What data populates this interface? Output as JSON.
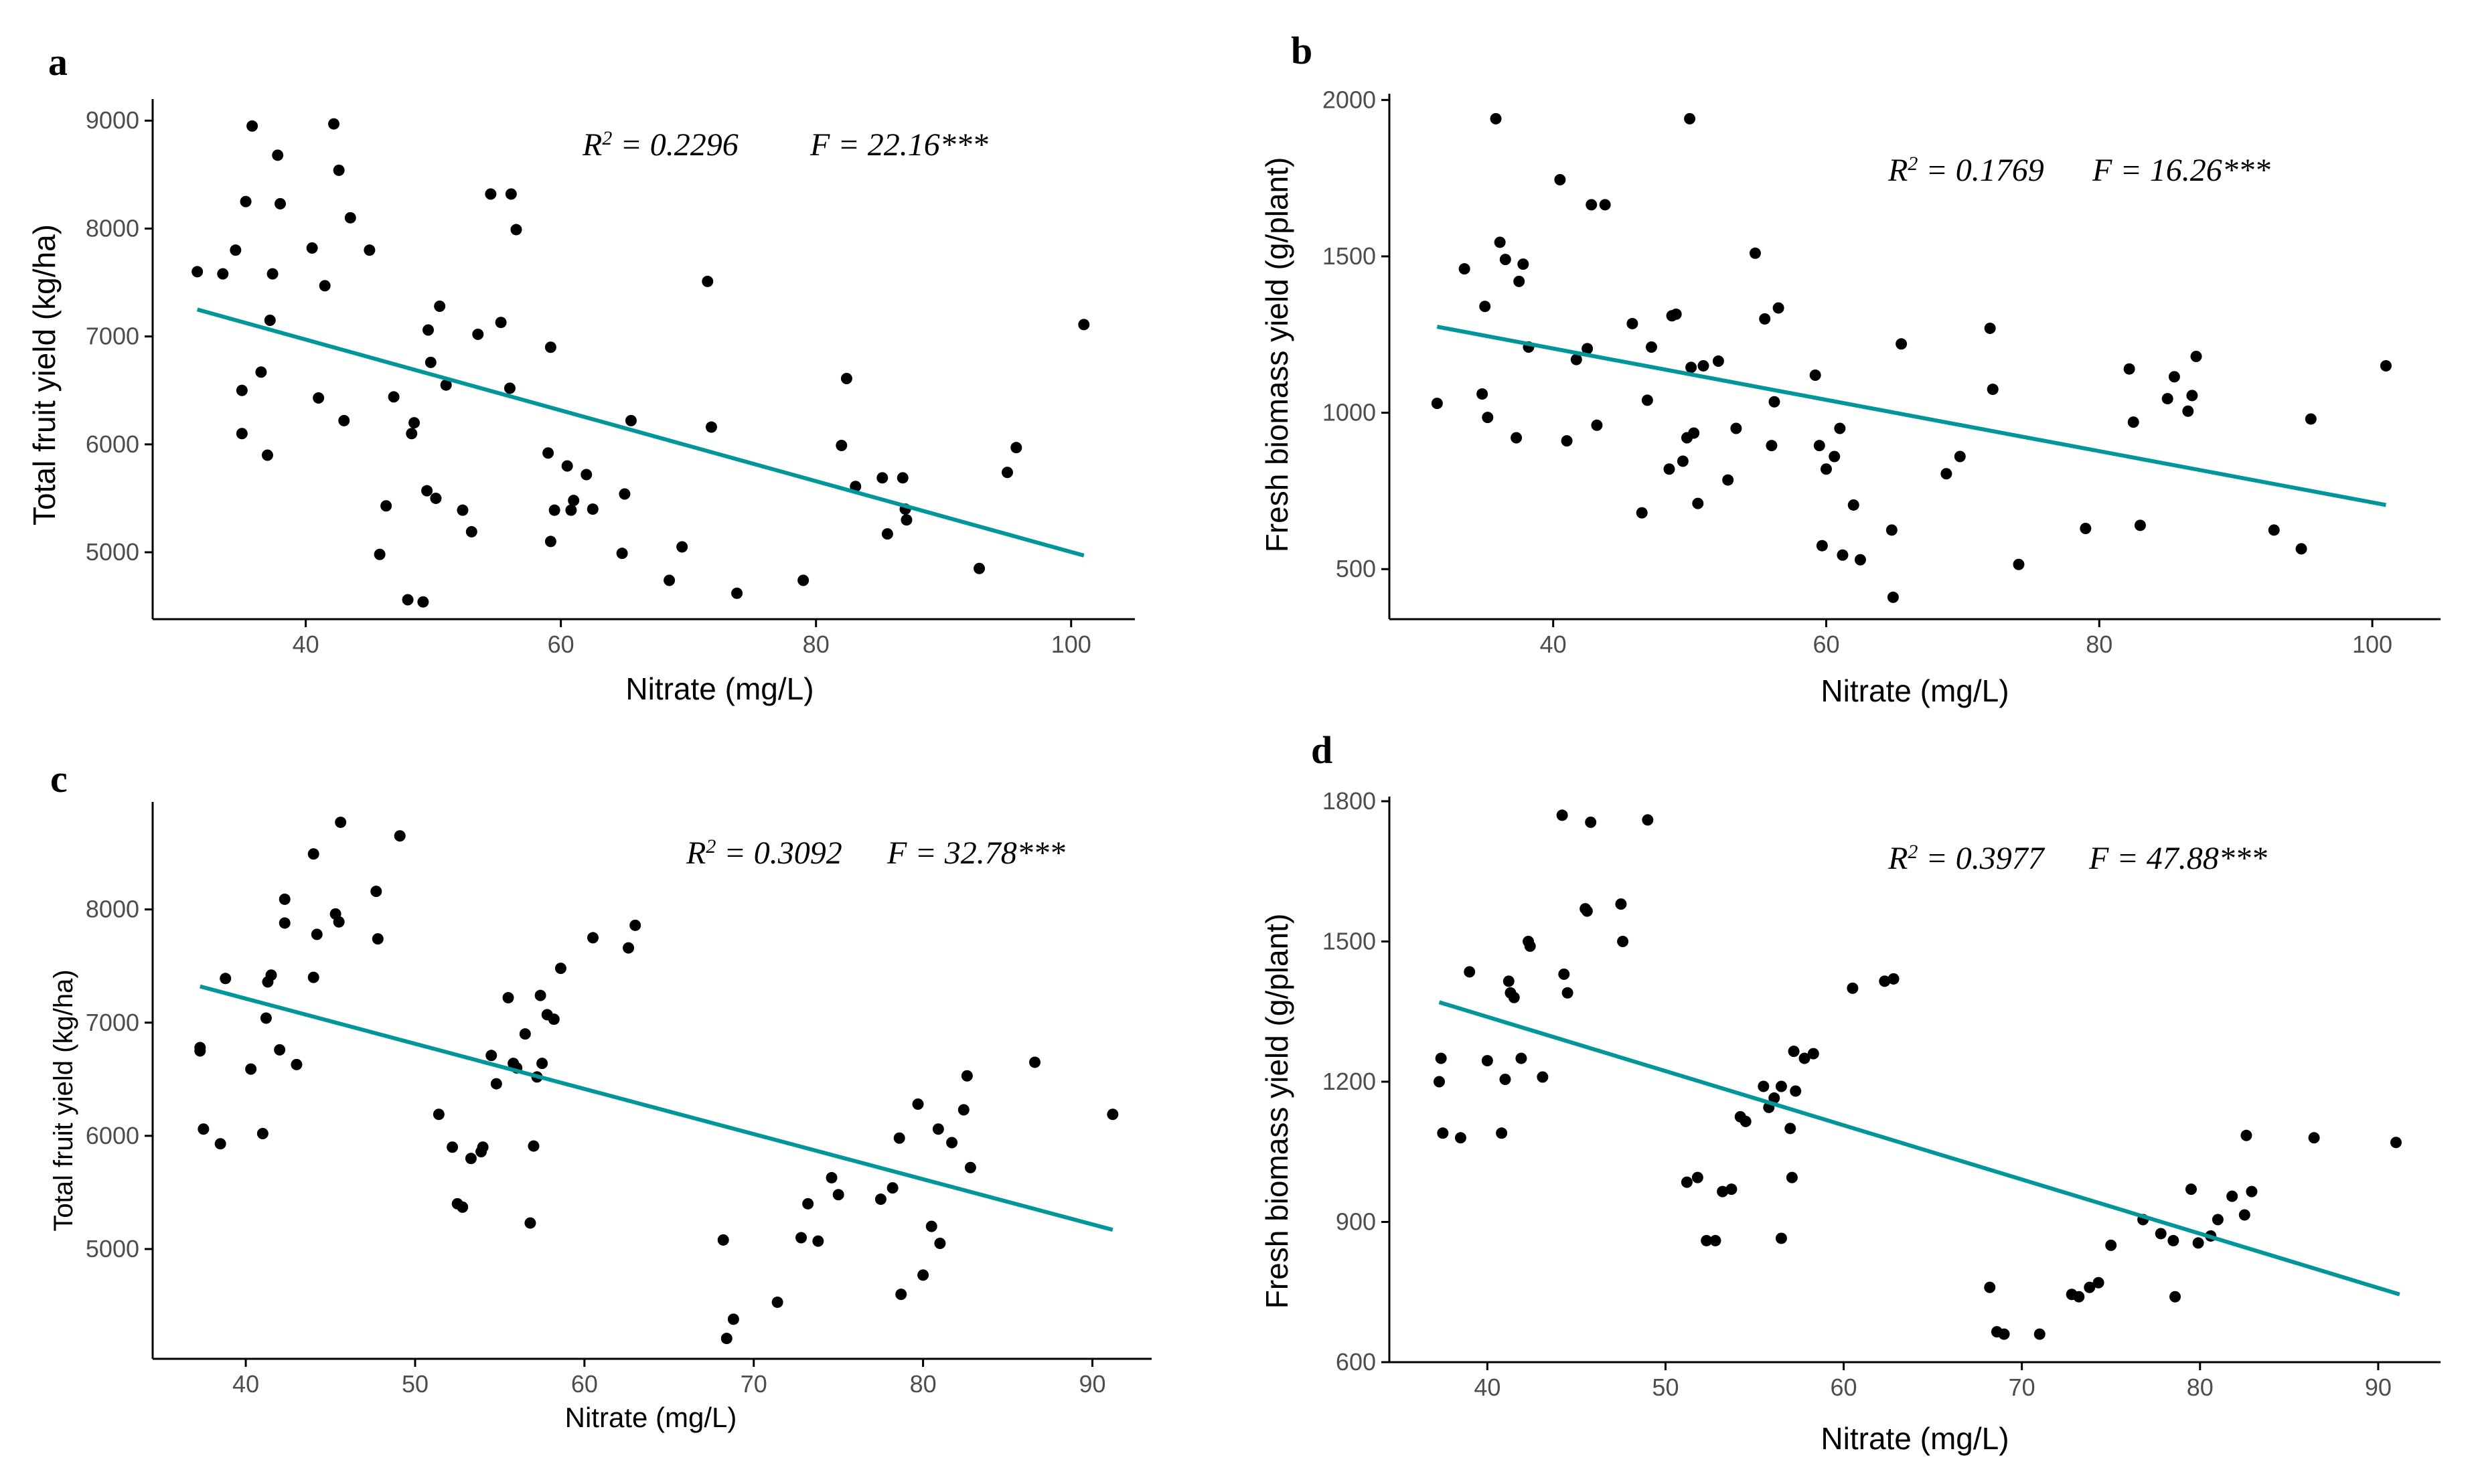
{
  "figure": {
    "colors": {
      "regression": "#00969a",
      "points": "#000000"
    }
  },
  "chart_data": [
    {
      "panel": "a",
      "type": "scatter",
      "xlabel": "Nitrate (mg/L)",
      "ylabel": "Total fruit yield (kg/ha)",
      "xlim": [
        28,
        105
      ],
      "ylim": [
        4380,
        9200
      ],
      "xticks": [
        40,
        60,
        80,
        100
      ],
      "yticks": [
        5000,
        6000,
        7000,
        8000,
        9000
      ],
      "stat": {
        "r2_label": "R",
        "r2_text": " = 0.2296",
        "f_text": "F = 22.16***"
      },
      "regression": {
        "x": [
          31.5,
          101
        ],
        "y": [
          7250,
          4970
        ]
      },
      "points": [
        [
          31.5,
          7600
        ],
        [
          33.5,
          7580
        ],
        [
          34.5,
          7800
        ],
        [
          35,
          6500
        ],
        [
          35,
          6100
        ],
        [
          35.3,
          8250
        ],
        [
          35.8,
          8950
        ],
        [
          36.5,
          6670
        ],
        [
          37,
          5900
        ],
        [
          37.2,
          7150
        ],
        [
          37.4,
          7580
        ],
        [
          37.8,
          8680
        ],
        [
          38,
          8230
        ],
        [
          40.5,
          7820
        ],
        [
          41,
          6430
        ],
        [
          41.5,
          7470
        ],
        [
          42.2,
          8970
        ],
        [
          42.6,
          8540
        ],
        [
          43,
          6220
        ],
        [
          43.5,
          8100
        ],
        [
          45,
          7800
        ],
        [
          45.8,
          4980
        ],
        [
          46.3,
          5430
        ],
        [
          46.9,
          6440
        ],
        [
          48,
          4560
        ],
        [
          48.3,
          6100
        ],
        [
          48.5,
          6200
        ],
        [
          49.2,
          4540
        ],
        [
          49.5,
          5570
        ],
        [
          49.6,
          7060
        ],
        [
          49.8,
          6760
        ],
        [
          50.2,
          5500
        ],
        [
          50.5,
          7280
        ],
        [
          51,
          6550
        ],
        [
          52.3,
          5390
        ],
        [
          53,
          5190
        ],
        [
          53.5,
          7020
        ],
        [
          54.5,
          8320
        ],
        [
          55.3,
          7130
        ],
        [
          56,
          6520
        ],
        [
          56.1,
          8320
        ],
        [
          56.5,
          7990
        ],
        [
          59,
          5920
        ],
        [
          59.2,
          5100
        ],
        [
          59.2,
          6900
        ],
        [
          59.5,
          5390
        ],
        [
          60.5,
          5800
        ],
        [
          60.8,
          5390
        ],
        [
          61,
          5480
        ],
        [
          62,
          5720
        ],
        [
          62.5,
          5400
        ],
        [
          64.8,
          4990
        ],
        [
          65,
          5540
        ],
        [
          65.5,
          6220
        ],
        [
          68.5,
          4740
        ],
        [
          69.5,
          5050
        ],
        [
          71.5,
          7510
        ],
        [
          71.8,
          6160
        ],
        [
          73.8,
          4620
        ],
        [
          79,
          4740
        ],
        [
          82,
          5990
        ],
        [
          82.4,
          6610
        ],
        [
          83.1,
          5610
        ],
        [
          85.2,
          5690
        ],
        [
          85.6,
          5170
        ],
        [
          86.8,
          5690
        ],
        [
          87,
          5400
        ],
        [
          87.1,
          5300
        ],
        [
          92.8,
          4850
        ],
        [
          95,
          5740
        ],
        [
          95.7,
          5970
        ],
        [
          101,
          7110
        ]
      ]
    },
    {
      "panel": "b",
      "type": "scatter",
      "xlabel": "Nitrate (mg/L)",
      "ylabel": "Fresh biomass yield (g/plant)",
      "xlim": [
        28,
        105
      ],
      "ylim": [
        340,
        2020
      ],
      "xticks": [
        40,
        60,
        80,
        100
      ],
      "yticks": [
        500,
        1000,
        1500,
        2000
      ],
      "stat": {
        "r2_label": "R",
        "r2_text": " = 0.1769",
        "f_text": "F = 16.26***"
      },
      "regression": {
        "x": [
          31.5,
          101
        ],
        "y": [
          1275,
          705
        ]
      },
      "points": [
        [
          31.5,
          1030
        ],
        [
          33.5,
          1460
        ],
        [
          34.8,
          1060
        ],
        [
          35,
          1340
        ],
        [
          35.2,
          985
        ],
        [
          35.8,
          1940
        ],
        [
          36.1,
          1545
        ],
        [
          36.5,
          1490
        ],
        [
          37.3,
          920
        ],
        [
          37.5,
          1420
        ],
        [
          37.8,
          1475
        ],
        [
          38.2,
          1210
        ],
        [
          40.5,
          1745
        ],
        [
          41,
          910
        ],
        [
          41.7,
          1170
        ],
        [
          42.5,
          1205
        ],
        [
          42.8,
          1665
        ],
        [
          43.2,
          960
        ],
        [
          43.8,
          1665
        ],
        [
          45.8,
          1285
        ],
        [
          46.5,
          680
        ],
        [
          46.9,
          1040
        ],
        [
          47.2,
          1210
        ],
        [
          48.5,
          820
        ],
        [
          48.7,
          1310
        ],
        [
          49,
          1315
        ],
        [
          49.5,
          845
        ],
        [
          49.8,
          920
        ],
        [
          50,
          1940
        ],
        [
          50.1,
          1145
        ],
        [
          50.3,
          935
        ],
        [
          50.6,
          710
        ],
        [
          51,
          1150
        ],
        [
          52.1,
          1165
        ],
        [
          52.8,
          785
        ],
        [
          53.4,
          950
        ],
        [
          54.8,
          1510
        ],
        [
          55.5,
          1300
        ],
        [
          56,
          895
        ],
        [
          56.2,
          1035
        ],
        [
          56.5,
          1335
        ],
        [
          59.2,
          1120
        ],
        [
          59.5,
          895
        ],
        [
          59.7,
          575
        ],
        [
          60,
          820
        ],
        [
          60.6,
          860
        ],
        [
          61,
          950
        ],
        [
          61.2,
          545
        ],
        [
          62,
          705
        ],
        [
          62.5,
          530
        ],
        [
          64.8,
          625
        ],
        [
          64.9,
          410
        ],
        [
          65.5,
          1220
        ],
        [
          68.8,
          805
        ],
        [
          69.8,
          860
        ],
        [
          72,
          1270
        ],
        [
          72.2,
          1075
        ],
        [
          74.1,
          515
        ],
        [
          79,
          630
        ],
        [
          82.2,
          1140
        ],
        [
          82.5,
          970
        ],
        [
          83,
          640
        ],
        [
          85,
          1045
        ],
        [
          85.5,
          1115
        ],
        [
          86.5,
          1005
        ],
        [
          86.8,
          1055
        ],
        [
          87.1,
          1180
        ],
        [
          92.8,
          625
        ],
        [
          94.8,
          565
        ],
        [
          95.5,
          980
        ],
        [
          101,
          1150
        ]
      ]
    },
    {
      "panel": "c",
      "type": "scatter",
      "xlabel": "Nitrate (mg/L)",
      "ylabel": "Total fruit yield (kg/ha)",
      "xlim": [
        34.5,
        93.5
      ],
      "ylim": [
        4030,
        8950
      ],
      "xticks": [
        40,
        50,
        60,
        70,
        80,
        90
      ],
      "yticks": [
        5000,
        6000,
        7000,
        8000
      ],
      "stat": {
        "r2_label": "R",
        "r2_text": " = 0.3092",
        "f_text": "F = 32.78***"
      },
      "regression": {
        "x": [
          37.3,
          91.2
        ],
        "y": [
          7320,
          5170
        ]
      },
      "points": [
        [
          37.3,
          6750
        ],
        [
          37.3,
          6780
        ],
        [
          37.5,
          6060
        ],
        [
          38.5,
          5930
        ],
        [
          38.8,
          7390
        ],
        [
          40.3,
          6590
        ],
        [
          41,
          6020
        ],
        [
          41.2,
          7040
        ],
        [
          41.3,
          7360
        ],
        [
          41.5,
          7420
        ],
        [
          42,
          6760
        ],
        [
          42.3,
          8090
        ],
        [
          42.3,
          7880
        ],
        [
          43,
          6630
        ],
        [
          44,
          8490
        ],
        [
          44,
          7400
        ],
        [
          44.2,
          7780
        ],
        [
          45.3,
          7960
        ],
        [
          45.5,
          7890
        ],
        [
          45.6,
          8770
        ],
        [
          47.7,
          8160
        ],
        [
          47.8,
          7740
        ],
        [
          49.1,
          8650
        ],
        [
          51.4,
          6190
        ],
        [
          52.2,
          5900
        ],
        [
          52.5,
          5400
        ],
        [
          52.8,
          5370
        ],
        [
          53.3,
          5800
        ],
        [
          53.9,
          5860
        ],
        [
          54,
          5900
        ],
        [
          54.5,
          6710
        ],
        [
          54.8,
          6460
        ],
        [
          55.5,
          7220
        ],
        [
          55.8,
          6640
        ],
        [
          56,
          6600
        ],
        [
          56.5,
          6900
        ],
        [
          56.8,
          5230
        ],
        [
          57,
          5910
        ],
        [
          57.2,
          6520
        ],
        [
          57.4,
          7240
        ],
        [
          57.5,
          6640
        ],
        [
          57.8,
          7070
        ],
        [
          58.2,
          7030
        ],
        [
          58.6,
          7480
        ],
        [
          60.5,
          7750
        ],
        [
          62.6,
          7660
        ],
        [
          63,
          7860
        ],
        [
          68.2,
          5080
        ],
        [
          68.4,
          4210
        ],
        [
          68.8,
          4380
        ],
        [
          71.4,
          4530
        ],
        [
          72.8,
          5100
        ],
        [
          73.2,
          5400
        ],
        [
          73.8,
          5070
        ],
        [
          74.6,
          5630
        ],
        [
          75,
          5480
        ],
        [
          77.5,
          5440
        ],
        [
          78.2,
          5540
        ],
        [
          78.6,
          5980
        ],
        [
          78.7,
          4600
        ],
        [
          79.7,
          6280
        ],
        [
          80,
          4770
        ],
        [
          80.5,
          5200
        ],
        [
          80.9,
          6060
        ],
        [
          81,
          5050
        ],
        [
          81.7,
          5940
        ],
        [
          82.4,
          6230
        ],
        [
          82.6,
          6530
        ],
        [
          82.8,
          5720
        ],
        [
          86.6,
          6650
        ],
        [
          91.2,
          6190
        ]
      ]
    },
    {
      "panel": "d",
      "type": "scatter",
      "xlabel": "Nitrate (mg/L)",
      "ylabel": "Fresh biomass yield (g/plant)",
      "xlim": [
        34.5,
        93.5
      ],
      "ylim": [
        600,
        1810
      ],
      "xticks": [
        40,
        50,
        60,
        70,
        80,
        90
      ],
      "yticks": [
        600,
        900,
        1200,
        1500,
        1800
      ],
      "stat": {
        "r2_label": "R",
        "r2_text": " = 0.3977",
        "f_text": "F = 47.88***"
      },
      "regression": {
        "x": [
          37.3,
          91.2
        ],
        "y": [
          1370,
          745
        ]
      },
      "points": [
        [
          37.3,
          1200
        ],
        [
          37.4,
          1250
        ],
        [
          37.5,
          1090
        ],
        [
          38.5,
          1080
        ],
        [
          39,
          1435
        ],
        [
          40,
          1245
        ],
        [
          40.8,
          1090
        ],
        [
          41,
          1205
        ],
        [
          41.2,
          1415
        ],
        [
          41.3,
          1390
        ],
        [
          41.5,
          1380
        ],
        [
          41.9,
          1250
        ],
        [
          42.3,
          1500
        ],
        [
          42.4,
          1490
        ],
        [
          43.1,
          1210
        ],
        [
          44.2,
          1770
        ],
        [
          44.3,
          1430
        ],
        [
          44.5,
          1390
        ],
        [
          45.5,
          1570
        ],
        [
          45.6,
          1565
        ],
        [
          45.8,
          1755
        ],
        [
          47.5,
          1580
        ],
        [
          47.6,
          1500
        ],
        [
          49,
          1760
        ],
        [
          51.2,
          985
        ],
        [
          51.8,
          995
        ],
        [
          52.3,
          860
        ],
        [
          52.8,
          860
        ],
        [
          53.2,
          965
        ],
        [
          53.7,
          970
        ],
        [
          54.2,
          1125
        ],
        [
          54.5,
          1115
        ],
        [
          55.5,
          1190
        ],
        [
          55.8,
          1145
        ],
        [
          56.1,
          1165
        ],
        [
          56.5,
          1190
        ],
        [
          56.5,
          865
        ],
        [
          57,
          1100
        ],
        [
          57.1,
          995
        ],
        [
          57.2,
          1265
        ],
        [
          57.3,
          1180
        ],
        [
          57.8,
          1250
        ],
        [
          58.3,
          1260
        ],
        [
          60.5,
          1400
        ],
        [
          62.3,
          1415
        ],
        [
          62.8,
          1420
        ],
        [
          68.2,
          760
        ],
        [
          68.6,
          665
        ],
        [
          69,
          660
        ],
        [
          71,
          660
        ],
        [
          72.8,
          745
        ],
        [
          73.2,
          740
        ],
        [
          73.8,
          760
        ],
        [
          74.3,
          770
        ],
        [
          75,
          850
        ],
        [
          76.8,
          905
        ],
        [
          77.8,
          875
        ],
        [
          78.5,
          860
        ],
        [
          78.6,
          740
        ],
        [
          79.5,
          970
        ],
        [
          79.9,
          855
        ],
        [
          80.6,
          870
        ],
        [
          81,
          905
        ],
        [
          81.8,
          955
        ],
        [
          82.5,
          915
        ],
        [
          82.6,
          1085
        ],
        [
          82.9,
          965
        ],
        [
          86.4,
          1080
        ],
        [
          91,
          1070
        ]
      ]
    }
  ]
}
